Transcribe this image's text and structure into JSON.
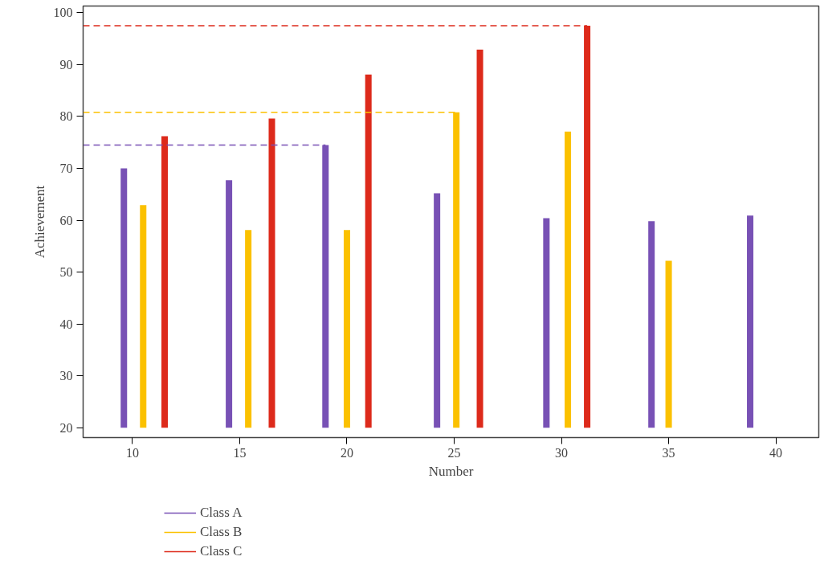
{
  "chart_data": {
    "type": "bar",
    "xlabel": "Number",
    "ylabel": "Achievement",
    "xlim": [
      7.7,
      42.0
    ],
    "xticks": [
      10,
      15,
      20,
      25,
      30,
      35,
      40
    ],
    "ylim": [
      18.1,
      101.3
    ],
    "yticks": [
      20,
      30,
      40,
      50,
      60,
      70,
      80,
      90,
      100
    ],
    "grid": false,
    "legend": "bottom left",
    "series": [
      {
        "name": "Class A",
        "color": "#7851b5",
        "x": [
          9.6,
          14.5,
          19.0,
          24.2,
          29.3,
          34.2,
          38.8
        ],
        "base": [
          20,
          20,
          20,
          20,
          20,
          20,
          20
        ],
        "values": [
          50.0,
          47.7,
          54.5,
          45.2,
          40.4,
          39.8,
          40.9
        ]
      },
      {
        "name": "Class B",
        "color": "#fbc100",
        "x": [
          10.5,
          15.4,
          20.0,
          25.1,
          30.3,
          35.0
        ],
        "base": [
          20,
          20,
          20,
          20,
          20,
          20
        ],
        "values": [
          42.9,
          38.1,
          38.1,
          60.8,
          57.1,
          32.2
        ]
      },
      {
        "name": "Class C",
        "color": "#dd2a1b",
        "x": [
          11.5,
          16.5,
          21.0,
          26.2,
          31.2
        ],
        "base": [
          20,
          20,
          20,
          20,
          20
        ],
        "values": [
          56.2,
          59.6,
          68.1,
          72.9,
          77.5
        ]
      }
    ],
    "ref_lines": [
      {
        "axis": "y",
        "value": 74.5,
        "color": "#7851b5",
        "line_style": "dashed"
      },
      {
        "axis": "y",
        "value": 80.8,
        "color": "#fbc100",
        "line_style": "dashed"
      },
      {
        "axis": "y",
        "value": 97.5,
        "color": "#dd2a1b",
        "line_style": "dashed"
      }
    ]
  }
}
